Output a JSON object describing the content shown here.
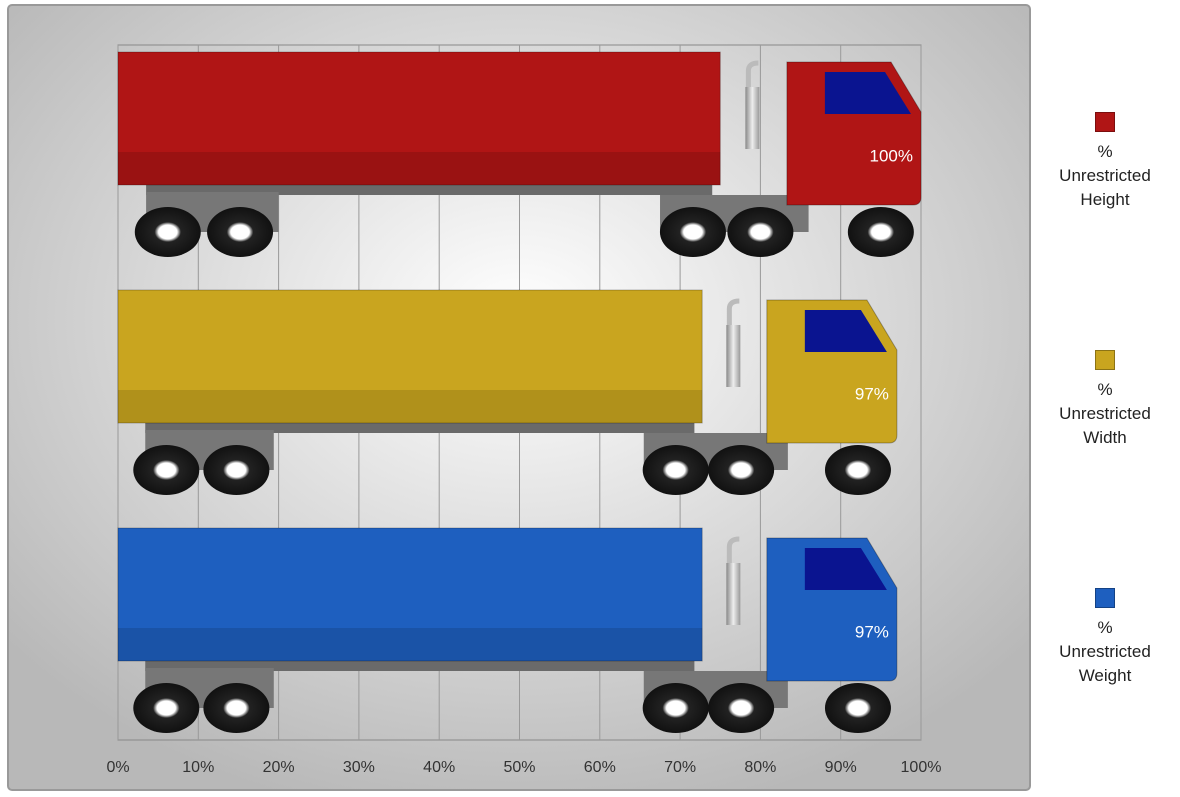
{
  "chart_data": {
    "type": "truck-bar",
    "series": [
      {
        "name": "% Unrestricted Height",
        "color": "#b01515",
        "values": [
          100
        ],
        "value_labels": [
          "100%"
        ]
      },
      {
        "name": "% Unrestricted Width",
        "color": "#c9a51f",
        "values": [
          97
        ],
        "value_labels": [
          "97%"
        ]
      },
      {
        "name": "% Unrestricted Weight",
        "color": "#1e5fbf",
        "values": [
          97
        ],
        "value_labels": [
          "97%"
        ]
      }
    ],
    "xlim": [
      0,
      100
    ],
    "xticks": [
      {
        "value": 0,
        "label": "0%"
      },
      {
        "value": 10,
        "label": "10%"
      },
      {
        "value": 20,
        "label": "20%"
      },
      {
        "value": 30,
        "label": "30%"
      },
      {
        "value": 40,
        "label": "40%"
      },
      {
        "value": 50,
        "label": "50%"
      },
      {
        "value": 60,
        "label": "60%"
      },
      {
        "value": 70,
        "label": "70%"
      },
      {
        "value": 80,
        "label": "80%"
      },
      {
        "value": 90,
        "label": "90%"
      },
      {
        "value": 100,
        "label": "100%"
      }
    ],
    "grid": true
  }
}
